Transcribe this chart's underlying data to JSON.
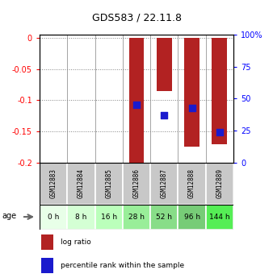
{
  "title": "GDS583 / 22.11.8",
  "samples": [
    "GSM12883",
    "GSM12884",
    "GSM12885",
    "GSM12886",
    "GSM12887",
    "GSM12888",
    "GSM12889"
  ],
  "ages": [
    "0 h",
    "8 h",
    "16 h",
    "28 h",
    "52 h",
    "96 h",
    "144 h"
  ],
  "log_ratio": [
    0.0,
    0.0,
    0.0,
    -0.202,
    -0.085,
    -0.175,
    -0.17
  ],
  "percentile_rank": [
    null,
    null,
    null,
    45.0,
    37.0,
    43.0,
    24.0
  ],
  "ylim_left": [
    -0.2,
    0.005
  ],
  "ylim_right": [
    0,
    100
  ],
  "yticks_left": [
    0,
    -0.05,
    -0.1,
    -0.15,
    -0.2
  ],
  "yticks_right": [
    0,
    25,
    50,
    75,
    100
  ],
  "bar_color": "#B22222",
  "dot_color": "#1a1acd",
  "bar_width": 0.55,
  "dot_size": 40,
  "age_bg_colors": [
    "#e8ffe8",
    "#d4ffd4",
    "#bbffbb",
    "#99ee99",
    "#88dd88",
    "#77cc77",
    "#55ee55"
  ],
  "sample_bg_color": "#c8c8c8",
  "legend_log_ratio": "log ratio",
  "legend_percentile": "percentile rank within the sample",
  "fig_width": 3.38,
  "fig_height": 3.45,
  "fig_dpi": 100
}
